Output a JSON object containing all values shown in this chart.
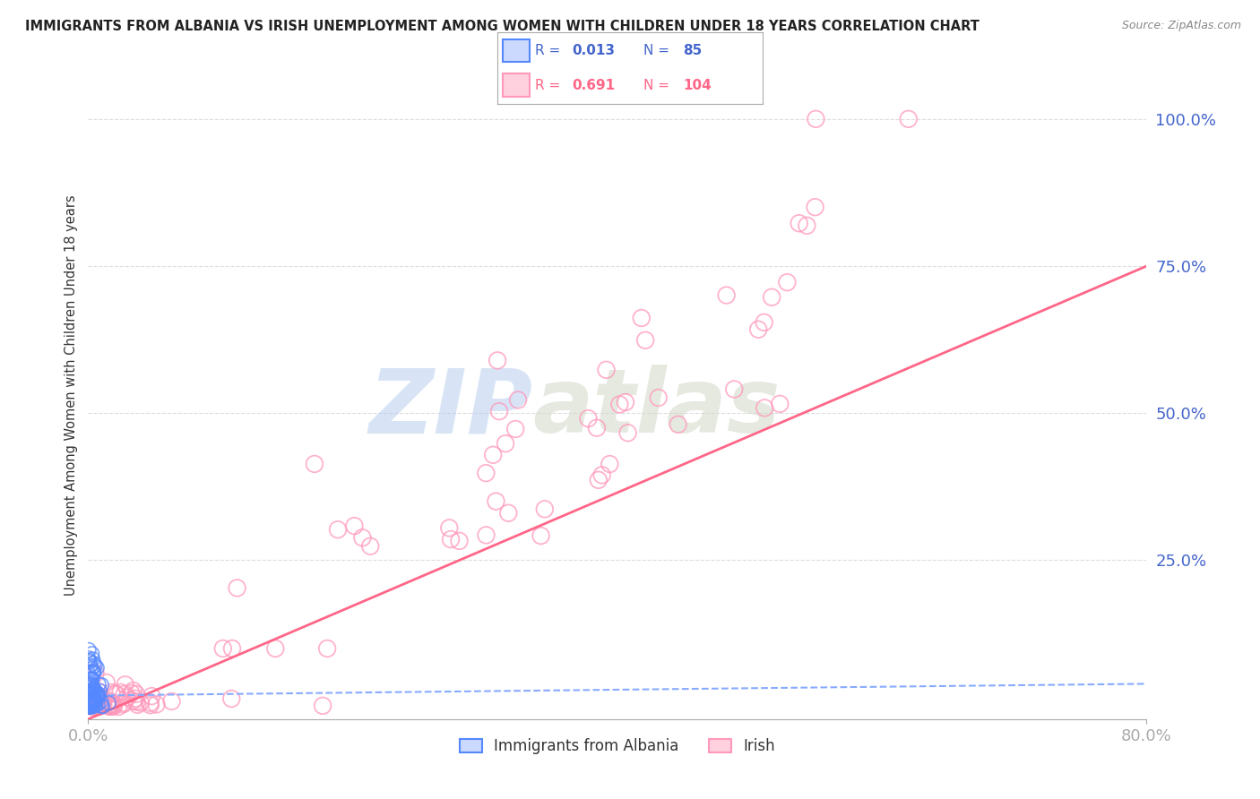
{
  "title": "IMMIGRANTS FROM ALBANIA VS IRISH UNEMPLOYMENT AMONG WOMEN WITH CHILDREN UNDER 18 YEARS CORRELATION CHART",
  "source": "Source: ZipAtlas.com",
  "ylabel": "Unemployment Among Women with Children Under 18 years",
  "xlim": [
    0.0,
    0.8
  ],
  "ylim": [
    -0.02,
    1.08
  ],
  "albania_R": 0.013,
  "albania_N": 85,
  "irish_R": 0.691,
  "irish_N": 104,
  "albania_color": "#5588ff",
  "irish_color": "#ff99bb",
  "albania_line_color": "#88aaff",
  "irish_line_color": "#ff6688",
  "watermark_zip": "ZIP",
  "watermark_atlas": "atlas",
  "background_color": "#ffffff",
  "grid_color": "#dddddd",
  "legend_label_albania": "Immigrants from Albania",
  "legend_label_irish": "Irish",
  "axis_label_color": "#4466cc",
  "title_color": "#222222",
  "yticks": [
    0.25,
    0.5,
    0.75,
    1.0
  ],
  "ytick_labels": [
    "25.0%",
    "50.0%",
    "75.0%",
    "100.0%"
  ],
  "xticks": [
    0.0,
    0.8
  ],
  "xtick_labels": [
    "0.0%",
    "80.0%"
  ],
  "irish_line_x0": 0.0,
  "irish_line_y0": -0.02,
  "irish_line_x1": 0.8,
  "irish_line_y1": 0.75,
  "albania_line_x0": 0.0,
  "albania_line_y0": 0.02,
  "albania_line_x1": 0.8,
  "albania_line_y1": 0.04
}
